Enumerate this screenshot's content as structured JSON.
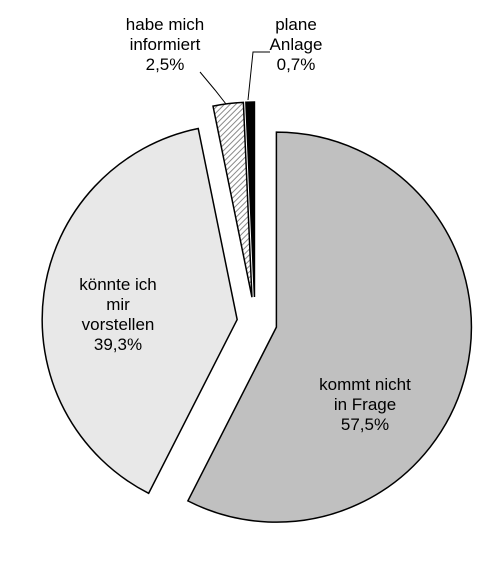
{
  "chart_data": {
    "type": "pie",
    "categories": [
      "kommt nicht\nin Frage",
      "könnte ich\nmir\nvorstellen",
      "habe mich\ninformiert",
      "plane\nAnlage"
    ],
    "values": [
      57.5,
      39.3,
      2.5,
      0.7
    ],
    "value_labels": [
      "57,5%",
      "39,3%",
      "2,5%",
      "0,7%"
    ],
    "colors": [
      "#c0c0c0",
      "#e8e8e8",
      "#8a8a8a",
      "#000000"
    ]
  }
}
